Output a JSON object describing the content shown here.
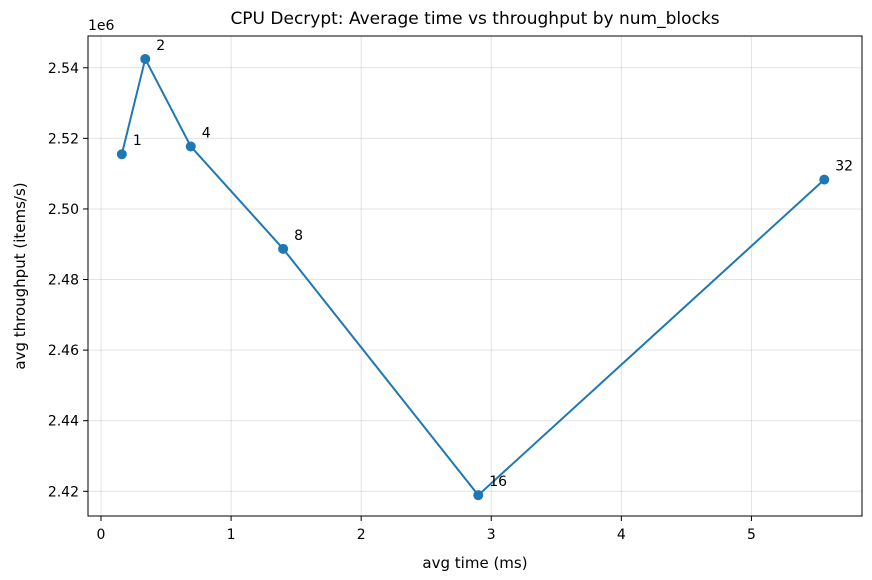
{
  "chart_data": {
    "type": "line",
    "title": "CPU Decrypt: Average time vs throughput by num_blocks",
    "xlabel": "avg time (ms)",
    "ylabel": "avg throughput (items/s)",
    "y_offset_label": "1e6",
    "xlim": [
      -0.1,
      5.85
    ],
    "ylim": [
      2.413,
      2.549
    ],
    "x_ticks": [
      0,
      1,
      2,
      3,
      4,
      5
    ],
    "x_tick_labels": [
      "0",
      "1",
      "2",
      "3",
      "4",
      "5"
    ],
    "y_ticks": [
      2.42,
      2.44,
      2.46,
      2.48,
      2.5,
      2.52,
      2.54
    ],
    "y_tick_labels": [
      "2.42",
      "2.44",
      "2.46",
      "2.48",
      "2.50",
      "2.52",
      "2.54"
    ],
    "grid": true,
    "series": [
      {
        "color": "#1f77b4",
        "marker": "circle",
        "x": [
          0.16,
          0.34,
          0.69,
          1.4,
          2.9,
          5.56
        ],
        "y": [
          2.5155,
          2.5425,
          2.5177,
          2.4887,
          2.4189,
          2.5083
        ],
        "point_labels": [
          "1",
          "2",
          "4",
          "8",
          "16",
          "32"
        ]
      }
    ]
  }
}
